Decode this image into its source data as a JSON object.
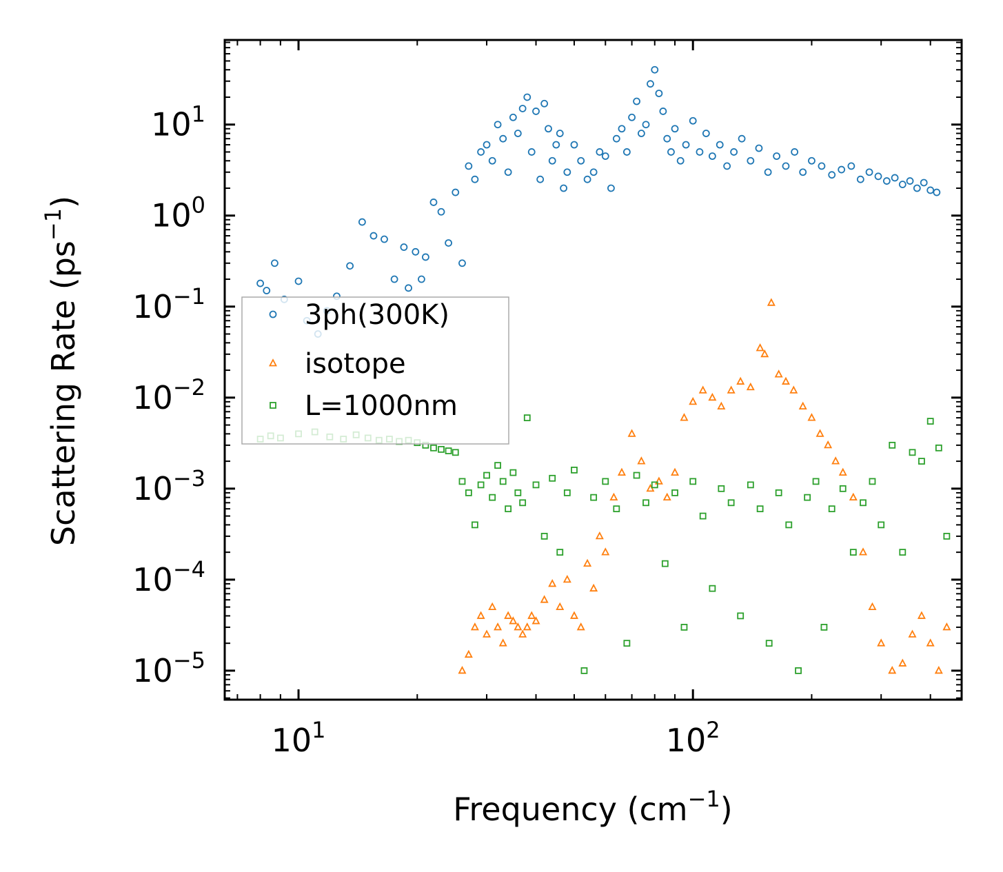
{
  "chart_data": {
    "type": "scatter",
    "title": "",
    "xlabel": "Frequency (cm⁻¹)",
    "xlabel_main": "Frequency (cm",
    "xlabel_exp": "−1",
    "xlabel_close": ")",
    "ylabel": "Scattering Rate (ps⁻¹)",
    "ylabel_main": "Scattering Rate (ps",
    "ylabel_exp": "−1",
    "ylabel_close": ")",
    "x_scale": "log",
    "y_scale": "log",
    "xlim": [
      6.5,
      480
    ],
    "ylim": [
      4.8e-06,
      85
    ],
    "x_ticks": [
      {
        "value": 10,
        "base": "10",
        "exp": "1"
      },
      {
        "value": 100,
        "base": "10",
        "exp": "2"
      }
    ],
    "y_ticks": [
      {
        "value": 1e-05,
        "base": "10",
        "exp": "−5"
      },
      {
        "value": 0.0001,
        "base": "10",
        "exp": "−4"
      },
      {
        "value": 0.001,
        "base": "10",
        "exp": "−3"
      },
      {
        "value": 0.01,
        "base": "10",
        "exp": "−2"
      },
      {
        "value": 0.1,
        "base": "10",
        "exp": "−1"
      },
      {
        "value": 1,
        "base": "10",
        "exp": "0"
      },
      {
        "value": 10,
        "base": "10",
        "exp": "1"
      }
    ],
    "legend_position": "center-left",
    "series": [
      {
        "name": "3ph(300K)",
        "marker": "circle",
        "color": "#1f77b4",
        "x": [
          8.0,
          8.3,
          8.7,
          9.2,
          10.0,
          10.5,
          11.2,
          11.8,
          12.5,
          13.5,
          14.5,
          15.5,
          16.5,
          17.5,
          18.5,
          19.0,
          19.8,
          20.5,
          21.0,
          22.0,
          23.0,
          24.0,
          25.0,
          26.0,
          27.0,
          28.0,
          29.0,
          30.0,
          31.0,
          32.0,
          33.0,
          34.0,
          35.0,
          36.0,
          37.0,
          38.0,
          39.0,
          40.0,
          41.0,
          42.0,
          43.0,
          44.0,
          45.0,
          46.0,
          47.0,
          48.0,
          50.0,
          52.0,
          54.0,
          56.0,
          58.0,
          60.0,
          62.0,
          64.0,
          66.0,
          68.0,
          70.0,
          72.0,
          74.0,
          76.0,
          78.0,
          80.0,
          82.0,
          84.0,
          86.0,
          88.0,
          90.0,
          93.0,
          96.0,
          100.0,
          104.0,
          108.0,
          112.0,
          117.0,
          122.0,
          127.0,
          133.0,
          140.0,
          147.0,
          155.0,
          163.0,
          172.0,
          181.0,
          190.0,
          200.0,
          212.0,
          225.0,
          238.0,
          252.0,
          266.0,
          280.0,
          295.0,
          310.0,
          325.0,
          340.0,
          355.0,
          370.0,
          385.0,
          400.0,
          415.0
        ],
        "y": [
          0.18,
          0.15,
          0.3,
          0.12,
          0.19,
          0.07,
          0.05,
          0.09,
          0.13,
          0.28,
          0.85,
          0.6,
          0.55,
          0.2,
          0.45,
          0.16,
          0.4,
          0.2,
          0.35,
          1.4,
          1.1,
          0.5,
          1.8,
          0.3,
          3.5,
          2.5,
          5.0,
          6.0,
          4.0,
          10.0,
          7.0,
          3.0,
          12.0,
          8.0,
          15.0,
          20.0,
          5.0,
          14.0,
          2.5,
          17.0,
          9.0,
          4.0,
          6.0,
          8.0,
          2.0,
          3.0,
          6.0,
          4.0,
          2.5,
          3.0,
          5.0,
          4.5,
          2.0,
          7.0,
          9.0,
          5.0,
          12.0,
          18.0,
          8.0,
          10.0,
          28.0,
          40.0,
          22.0,
          14.0,
          7.0,
          5.0,
          9.0,
          4.0,
          6.0,
          11.0,
          5.0,
          8.0,
          4.5,
          6.0,
          3.5,
          5.0,
          7.0,
          4.0,
          5.5,
          3.0,
          4.5,
          3.5,
          5.0,
          3.0,
          4.0,
          3.5,
          2.8,
          3.2,
          3.5,
          2.5,
          3.0,
          2.7,
          2.4,
          2.6,
          2.2,
          2.4,
          2.0,
          2.3,
          1.9,
          1.8
        ]
      },
      {
        "name": "isotope",
        "marker": "triangle",
        "color": "#ff7f0e",
        "x": [
          26.0,
          27.0,
          28.0,
          29.0,
          30.0,
          31.0,
          32.0,
          33.0,
          34.0,
          35.0,
          36.0,
          37.0,
          38.0,
          39.0,
          40.0,
          42.0,
          44.0,
          46.0,
          48.0,
          50.0,
          52.0,
          54.0,
          56.0,
          58.0,
          60.0,
          63.0,
          66.0,
          70.0,
          74.0,
          78.0,
          82.0,
          86.0,
          90.0,
          95.0,
          100.0,
          106.0,
          112.0,
          118.0,
          125.0,
          132.0,
          140.0,
          148.0,
          152.0,
          158.0,
          165.0,
          172.0,
          180.0,
          190.0,
          200.0,
          210.0,
          220.0,
          230.0,
          240.0,
          255.0,
          270.0,
          285.0,
          300.0,
          320.0,
          340.0,
          360.0,
          380.0,
          400.0,
          420.0,
          440.0
        ],
        "y": [
          1e-05,
          1.5e-05,
          3e-05,
          4e-05,
          2.5e-05,
          5e-05,
          3e-05,
          2e-05,
          4e-05,
          3.5e-05,
          3e-05,
          2.5e-05,
          3e-05,
          4e-05,
          3.5e-05,
          6e-05,
          9e-05,
          5e-05,
          0.0001,
          4e-05,
          3e-05,
          0.00015,
          8e-05,
          0.0003,
          0.0002,
          0.0008,
          0.0015,
          0.004,
          0.002,
          0.001,
          0.0012,
          0.0008,
          0.0015,
          0.006,
          0.009,
          0.012,
          0.01,
          0.008,
          0.012,
          0.015,
          0.013,
          0.035,
          0.03,
          0.11,
          0.018,
          0.015,
          0.012,
          0.008,
          0.006,
          0.004,
          0.003,
          0.002,
          0.0015,
          0.0008,
          0.0002,
          5e-05,
          2e-05,
          1e-05,
          1.2e-05,
          2.5e-05,
          4e-05,
          2e-05,
          1e-05,
          3e-05
        ]
      },
      {
        "name": "L=1000nm",
        "marker": "square",
        "color": "#2ca02c",
        "x": [
          8.0,
          8.5,
          9.0,
          10.0,
          11.0,
          12.0,
          13.0,
          14.0,
          15.0,
          16.0,
          17.0,
          18.0,
          19.0,
          20.0,
          21.0,
          22.0,
          23.0,
          24.0,
          25.0,
          26.0,
          27.0,
          28.0,
          29.0,
          30.0,
          31.0,
          32.0,
          33.0,
          34.0,
          35.0,
          36.0,
          37.0,
          38.0,
          40.0,
          42.0,
          44.0,
          46.0,
          48.0,
          50.0,
          53.0,
          56.0,
          60.0,
          64.0,
          68.0,
          72.0,
          76.0,
          80.0,
          85.0,
          90.0,
          95.0,
          100.0,
          106.0,
          112.0,
          118.0,
          125.0,
          132.0,
          140.0,
          148.0,
          156.0,
          165.0,
          175.0,
          185.0,
          195.0,
          205.0,
          215.0,
          225.0,
          240.0,
          255.0,
          270.0,
          285.0,
          300.0,
          320.0,
          340.0,
          360.0,
          380.0,
          400.0,
          420.0,
          440.0
        ],
        "y": [
          0.0035,
          0.0038,
          0.0036,
          0.004,
          0.0042,
          0.0037,
          0.0035,
          0.0039,
          0.0036,
          0.0034,
          0.0035,
          0.0033,
          0.0034,
          0.0032,
          0.003,
          0.0028,
          0.0027,
          0.0026,
          0.0025,
          0.0012,
          0.0009,
          0.0004,
          0.0011,
          0.0014,
          0.0008,
          0.0018,
          0.0012,
          0.0006,
          0.0015,
          0.0009,
          0.0007,
          0.006,
          0.0011,
          0.0003,
          0.0013,
          0.0002,
          0.0009,
          0.0016,
          1e-05,
          0.0008,
          0.0012,
          0.0006,
          2e-05,
          0.0014,
          0.0007,
          0.0011,
          0.00015,
          0.0009,
          3e-05,
          0.0012,
          0.0005,
          8e-05,
          0.001,
          0.0007,
          4e-05,
          0.0011,
          0.0006,
          2e-05,
          0.0009,
          0.0004,
          1e-05,
          0.0008,
          0.0012,
          3e-05,
          0.0006,
          0.001,
          0.0002,
          0.0007,
          0.0012,
          0.0004,
          0.003,
          0.0002,
          0.0025,
          0.002,
          0.0055,
          0.0028,
          0.0003
        ]
      }
    ]
  }
}
